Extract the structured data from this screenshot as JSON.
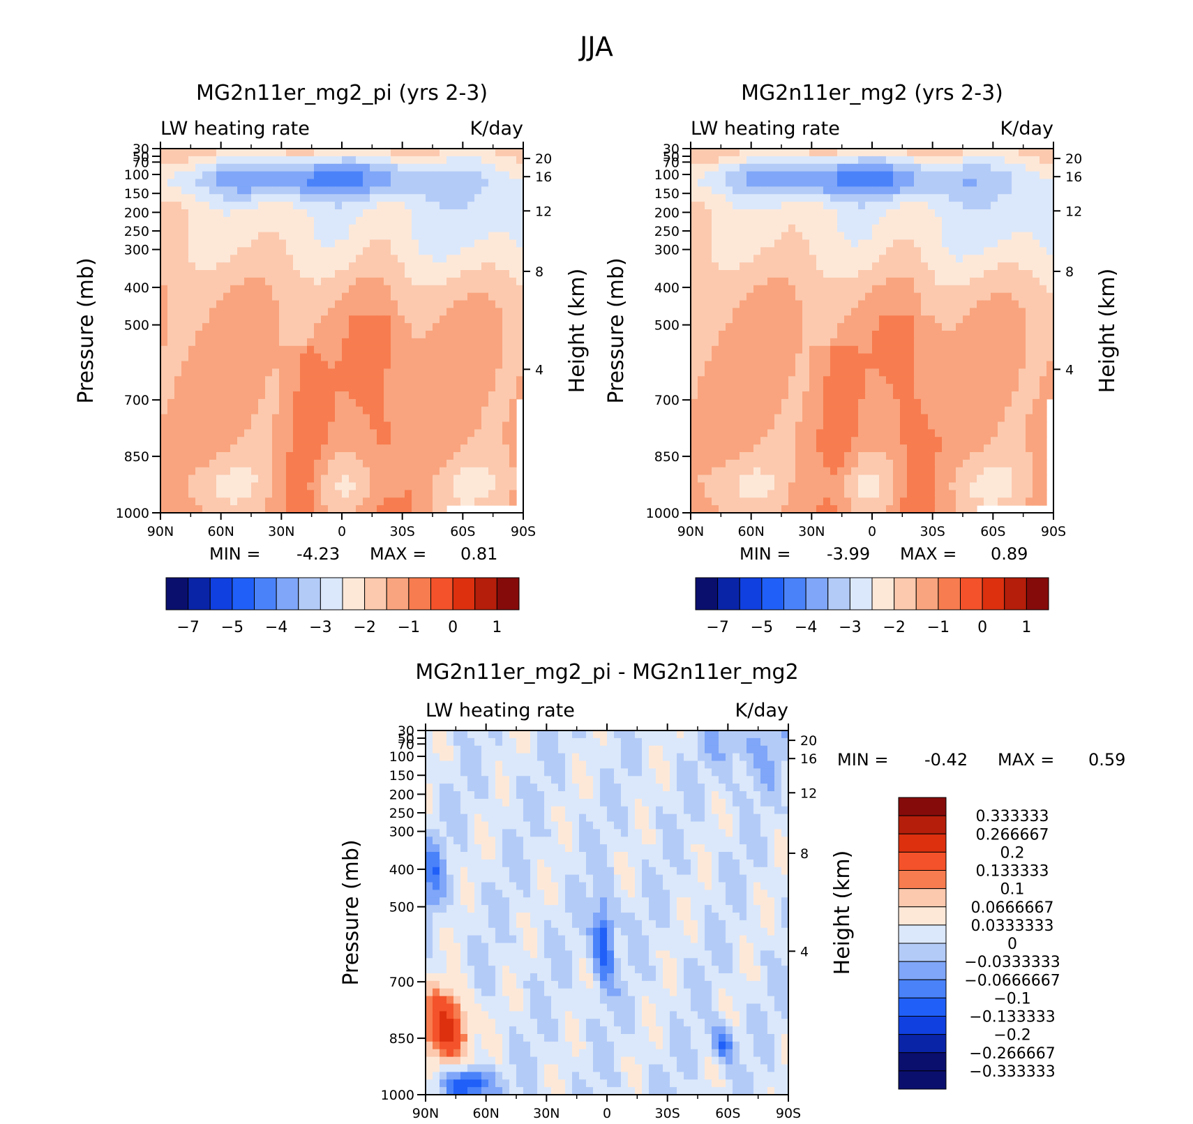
{
  "figure": {
    "title": "JJA"
  },
  "chart_data": [
    {
      "type": "heatmap",
      "id": "pi",
      "title": "MG2n11er_mg2_pi (yrs 2-3)",
      "left_label": "LW heating rate",
      "right_label": "K/day",
      "xlabel": "",
      "ylabel": "Pressure (mb)",
      "y2label": "Height (km)",
      "x_ticks": [
        "90N",
        "60N",
        "30N",
        "0",
        "30S",
        "60S",
        "90S"
      ],
      "y_ticks": [
        "30",
        "50",
        "70",
        "100",
        "150",
        "200",
        "250",
        "300",
        "400",
        "500",
        "700",
        "850",
        "1000"
      ],
      "y2_ticks": [
        "20",
        "16",
        "12",
        "8",
        "4"
      ],
      "min_label": "MIN =",
      "min": "-4.23",
      "max_label": "MAX =",
      "max": "0.81",
      "colorbar_ticks": [
        "-7",
        "-5",
        "-4",
        "-3",
        "-2",
        "-1",
        "0",
        "1"
      ],
      "colors": [
        "#0a0f6e",
        "#0a24a8",
        "#1040e0",
        "#2060f8",
        "#4a82fa",
        "#7fa6f8",
        "#b3cbf7",
        "#dbe8fb",
        "#fde8d8",
        "#fcc9ae",
        "#f9a47e",
        "#f77c4f",
        "#f4522a",
        "#dc300f",
        "#b41e0a",
        "#850b0b"
      ]
    },
    {
      "type": "heatmap",
      "id": "ctl",
      "title": "MG2n11er_mg2 (yrs 2-3)",
      "left_label": "LW heating rate",
      "right_label": "K/day",
      "xlabel": "",
      "ylabel": "Pressure (mb)",
      "y2label": "Height (km)",
      "x_ticks": [
        "90N",
        "60N",
        "30N",
        "0",
        "30S",
        "60S",
        "90S"
      ],
      "y_ticks": [
        "30",
        "50",
        "70",
        "100",
        "150",
        "200",
        "250",
        "300",
        "400",
        "500",
        "700",
        "850",
        "1000"
      ],
      "y2_ticks": [
        "20",
        "16",
        "12",
        "8",
        "4"
      ],
      "min_label": "MIN =",
      "min": "-3.99",
      "max_label": "MAX =",
      "max": "0.89",
      "colorbar_ticks": [
        "-7",
        "-5",
        "-4",
        "-3",
        "-2",
        "-1",
        "0",
        "1"
      ],
      "colors": [
        "#0a0f6e",
        "#0a24a8",
        "#1040e0",
        "#2060f8",
        "#4a82fa",
        "#7fa6f8",
        "#b3cbf7",
        "#dbe8fb",
        "#fde8d8",
        "#fcc9ae",
        "#f9a47e",
        "#f77c4f",
        "#f4522a",
        "#dc300f",
        "#b41e0a",
        "#850b0b"
      ]
    },
    {
      "type": "heatmap",
      "id": "diff",
      "title": "MG2n11er_mg2_pi - MG2n11er_mg2",
      "left_label": "LW heating rate",
      "right_label": "K/day",
      "xlabel": "",
      "ylabel": "Pressure (mb)",
      "y2label": "Height (km)",
      "x_ticks": [
        "90N",
        "60N",
        "30N",
        "0",
        "30S",
        "60S",
        "90S"
      ],
      "y_ticks": [
        "30",
        "50",
        "70",
        "100",
        "150",
        "200",
        "250",
        "300",
        "400",
        "500",
        "700",
        "850",
        "1000"
      ],
      "y2_ticks": [
        "20",
        "16",
        "12",
        "8",
        "4"
      ],
      "min_label": "MIN =",
      "min": "-0.42",
      "max_label": "MAX =",
      "max": "0.59",
      "colorbar_labels": [
        "0.333333",
        "0.266667",
        "0.2",
        "0.133333",
        "0.1",
        "0.0666667",
        "0.0333333",
        "0",
        "-0.0333333",
        "-0.0666667",
        "-0.1",
        "-0.133333",
        "-0.2",
        "-0.266667",
        "-0.333333"
      ],
      "colors": [
        "#850b0b",
        "#b41e0a",
        "#dc300f",
        "#f4522a",
        "#f77c4f",
        "#fcc9ae",
        "#fde8d8",
        "#dbe8fb",
        "#b3cbf7",
        "#7fa6f8",
        "#4a82fa",
        "#2060f8",
        "#1040e0",
        "#0a24a8",
        "#0a0f6e",
        "#0a0f6e"
      ]
    }
  ]
}
